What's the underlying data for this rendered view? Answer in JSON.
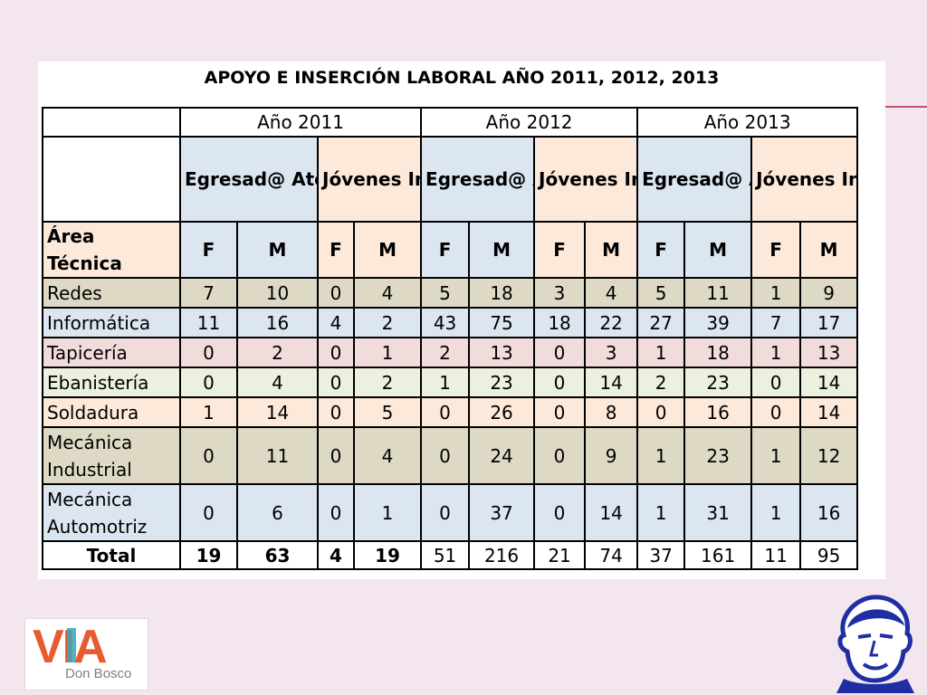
{
  "title": "APOYO E INSERCIÓN LABORAL AÑO 2011, 2012, 2013",
  "years": [
    "Año 2011",
    "Año 2012",
    "Año 2013"
  ],
  "groups": [
    "Egresad@ Atendid@",
    "Jóvenes Insertad @"
  ],
  "area_header": "Área Técnica",
  "gender_labels": [
    "F",
    "M"
  ],
  "rows": [
    {
      "area": "Redes",
      "values": [
        "7",
        "10",
        "0",
        "4",
        "5",
        "18",
        "3",
        "4",
        "5",
        "11",
        "1",
        "9"
      ]
    },
    {
      "area": "Informática",
      "values": [
        "11",
        "16",
        "4",
        "2",
        "43",
        "75",
        "18",
        "22",
        "27",
        "39",
        "7",
        "17"
      ]
    },
    {
      "area": "Tapicería",
      "values": [
        "0",
        "2",
        "0",
        "1",
        "2",
        "13",
        "0",
        "3",
        "1",
        "18",
        "1",
        "13"
      ]
    },
    {
      "area": "Ebanistería",
      "values": [
        "0",
        "4",
        "0",
        "2",
        "1",
        "23",
        "0",
        "14",
        "2",
        "23",
        "0",
        "14"
      ]
    },
    {
      "area": "Soldadura",
      "values": [
        "1",
        "14",
        "0",
        "5",
        "0",
        "26",
        "0",
        "8",
        "0",
        "16",
        "0",
        "14"
      ]
    },
    {
      "area": "Mecánica Industrial",
      "values": [
        "0",
        "11",
        "0",
        "4",
        "0",
        "24",
        "0",
        "9",
        "1",
        "23",
        "1",
        "12"
      ]
    },
    {
      "area": "Mecánica Automotriz",
      "values": [
        "0",
        "6",
        "0",
        "1",
        "0",
        "37",
        "0",
        "14",
        "1",
        "31",
        "1",
        "16"
      ]
    }
  ],
  "total": {
    "label": "Total",
    "values": [
      "19",
      "63",
      "4",
      "19",
      "51",
      "216",
      "21",
      "74",
      "37",
      "161",
      "11",
      "95"
    ]
  },
  "colors": {
    "background": "#f3e6ee",
    "blue": "#dce6f1",
    "peach": "#fde9d9",
    "tan": "#ddd9c4",
    "pink": "#f2dcdb",
    "green": "#ebf1de",
    "logo_orange": "#e85b2e",
    "logo_teal": "#3aa6b9",
    "portrait_blue": "#1f2fa3"
  },
  "logo": {
    "mark": "VIA",
    "tagline": "Don Bosco"
  },
  "icons": {
    "logo": "via-don-bosco-logo",
    "portrait": "don-bosco-portrait-icon"
  }
}
